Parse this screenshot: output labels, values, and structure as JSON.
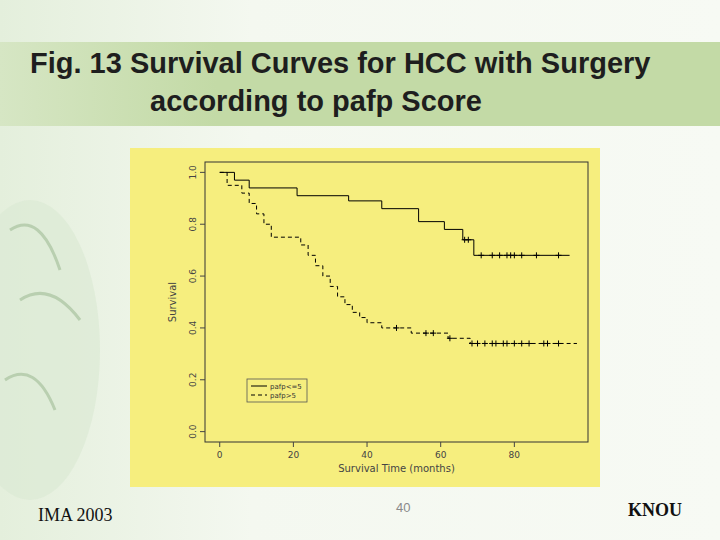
{
  "chart_data": {
    "type": "step",
    "title": "Fig. 13 Survival Curves for HCC with Surgery according to pafp Score",
    "x_label": "Survival Time (months)",
    "y_label": "Survival",
    "xlim": [
      -4,
      100
    ],
    "ylim": [
      -0.04,
      1.04
    ],
    "xticks": [
      0,
      20,
      40,
      60,
      80
    ],
    "yticks": [
      {
        "value": 0,
        "label": "0.0"
      },
      {
        "value": 0.2,
        "label": "0.2"
      },
      {
        "value": 0.4,
        "label": "0.4"
      },
      {
        "value": 0.6,
        "label": "0.6"
      },
      {
        "value": 0.8,
        "label": "0.8"
      },
      {
        "value": 1,
        "label": "1.0"
      }
    ],
    "legend": "bottom-left",
    "grid": false,
    "series": [
      {
        "name": "pafp<=5",
        "color": "#000000",
        "line_style": "solid",
        "marker": "plus",
        "x": [
          0,
          4,
          8,
          21,
          35,
          44,
          54,
          61,
          66,
          69,
          95
        ],
        "values": [
          1,
          0.97,
          0.94,
          0.91,
          0.89,
          0.86,
          0.81,
          0.78,
          0.74,
          0.68,
          0.68
        ],
        "censored": [
          66.5,
          67.5,
          71,
          74,
          76,
          78,
          79,
          80,
          82,
          86,
          92
        ]
      },
      {
        "name": "pafp>5",
        "color": "#000000",
        "line_style": "dashed",
        "marker": "plus",
        "x": [
          0,
          2,
          6,
          8,
          10,
          12,
          14,
          22,
          24,
          26,
          28,
          30,
          32,
          34,
          36,
          38,
          40,
          44,
          52,
          62,
          68,
          97
        ],
        "values": [
          1,
          0.95,
          0.92,
          0.88,
          0.84,
          0.8,
          0.75,
          0.72,
          0.68,
          0.64,
          0.6,
          0.56,
          0.52,
          0.49,
          0.46,
          0.44,
          0.42,
          0.4,
          0.38,
          0.36,
          0.34,
          0.34
        ],
        "censored": [
          48,
          56,
          58,
          62.5,
          68.5,
          70,
          72,
          74,
          75,
          77,
          78,
          80,
          82,
          84,
          88,
          89,
          92
        ]
      }
    ]
  },
  "slide": {
    "footer_left": "IMA 2003",
    "page_number": "40",
    "footer_right": "KNOU"
  }
}
